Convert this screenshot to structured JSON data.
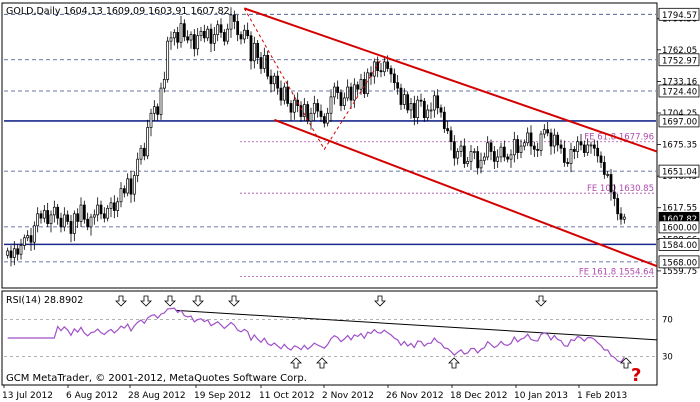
{
  "main_header": "GOLD,Daily  1604.13 1609.09 1603.91 1607.82",
  "rsi_header": "RSI(14) 28.8902",
  "copyright": "GCM MetaTrader, © 2001-2012, MetaQuotes Software Corp.",
  "colors": {
    "bull_candle": "#ffffff",
    "bear_candle": "#000000",
    "channel": "#d40000",
    "fib": "#b04cb0",
    "rsi_line": "#a050c8",
    "question": "#d40000"
  },
  "price_axis": {
    "min": 1545.0,
    "max": 1804.0,
    "ticks": [
      "1790.56",
      "1762.05",
      "1733.16",
      "1704.25",
      "1675.35",
      "1646.45",
      "1617.55",
      "1588.66",
      "1559.75"
    ],
    "boxed_levels": [
      "1794.57",
      "1752.97",
      "1724.40",
      "1697.00",
      "1651.04",
      "1607.82",
      "1600.00",
      "1584.00",
      "1568.00"
    ],
    "fib_labels": [
      "FE 61.8 1677.96",
      "FE 100 1630.85",
      "FE 161.8 1554.64"
    ]
  },
  "rsi_axis": {
    "ticks": [
      "70",
      "30"
    ]
  },
  "time_axis": {
    "labels": [
      "13 Jul 2012",
      "6 Aug 2012",
      "28 Aug 2012",
      "19 Sep 2012",
      "11 Oct 2012",
      "2 Nov 2012",
      "26 Nov 2012",
      "18 Dec 2012",
      "10 Jan 2013",
      "1 Feb 2013"
    ]
  },
  "annotation": "?",
  "chart_data": {
    "type": "candlestick",
    "symbol": "GOLD",
    "timeframe": "Daily",
    "ohlc_last": {
      "open": 1604.13,
      "high": 1609.09,
      "low": 1603.91,
      "close": 1607.82
    },
    "closes": [
      1578,
      1572,
      1580,
      1575,
      1583,
      1590,
      1592,
      1586,
      1601,
      1612,
      1608,
      1615,
      1603,
      1611,
      1618,
      1608,
      1600,
      1611,
      1605,
      1594,
      1612,
      1605,
      1620,
      1607,
      1600,
      1609,
      1611,
      1620,
      1612,
      1608,
      1617,
      1622,
      1615,
      1623,
      1635,
      1631,
      1644,
      1630,
      1647,
      1662,
      1672,
      1665,
      1691,
      1704,
      1710,
      1703,
      1727,
      1735,
      1770,
      1773,
      1778,
      1769,
      1786,
      1774,
      1771,
      1776,
      1763,
      1775,
      1779,
      1773,
      1781,
      1768,
      1776,
      1785,
      1778,
      1770,
      1781,
      1794,
      1788,
      1776,
      1772,
      1780,
      1775,
      1752,
      1768,
      1755,
      1745,
      1757,
      1738,
      1731,
      1738,
      1727,
      1716,
      1728,
      1713,
      1705,
      1716,
      1711,
      1701,
      1712,
      1697,
      1704,
      1713,
      1706,
      1701,
      1695,
      1704,
      1719,
      1728,
      1723,
      1711,
      1718,
      1728,
      1716,
      1730,
      1726,
      1735,
      1722,
      1741,
      1738,
      1751,
      1743,
      1742,
      1751,
      1745,
      1740,
      1732,
      1727,
      1712,
      1721,
      1707,
      1713,
      1700,
      1716,
      1715,
      1700,
      1707,
      1707,
      1720,
      1709,
      1705,
      1690,
      1688,
      1678,
      1663,
      1669,
      1674,
      1658,
      1660,
      1669,
      1669,
      1654,
      1661,
      1664,
      1677,
      1669,
      1660,
      1664,
      1673,
      1664,
      1662,
      1666,
      1680,
      1668,
      1674,
      1677,
      1686,
      1674,
      1671,
      1670,
      1685,
      1689,
      1686,
      1674,
      1684,
      1675,
      1672,
      1659,
      1658,
      1671,
      1669,
      1678,
      1675,
      1668,
      1675,
      1675,
      1672,
      1665,
      1659,
      1648,
      1648,
      1632,
      1626,
      1612,
      1607,
      1609
    ],
    "horizontal_levels": [
      1794.57,
      1752.97,
      1724.4,
      1697.0,
      1651.04,
      1600.0,
      1584.0,
      1568.0
    ],
    "fib_expansion": [
      {
        "label": "FE 61.8",
        "value": 1677.96
      },
      {
        "label": "FE 100",
        "value": 1630.85
      },
      {
        "label": "FE 161.8",
        "value": 1554.64
      }
    ],
    "channel": "descending",
    "rsi": {
      "period": 14,
      "last": 28.8902,
      "levels": [
        70,
        30
      ],
      "arrows_down": [
        "16 Jul 2012",
        "22 Aug 2012",
        "3 Sep 2012",
        "14 Sep 2012",
        "4 Oct 2012",
        "23 Nov 2012",
        "15 Jan 2013"
      ],
      "arrows_up": [
        "30 Oct 2012",
        "1 Nov 2012",
        "18 Dec 2012",
        "14 Feb 2013"
      ]
    },
    "xlabels": [
      "13 Jul 2012",
      "6 Aug 2012",
      "28 Aug 2012",
      "19 Sep 2012",
      "11 Oct 2012",
      "2 Nov 2012",
      "26 Nov 2012",
      "18 Dec 2012",
      "10 Jan 2013",
      "1 Feb 2013"
    ]
  }
}
